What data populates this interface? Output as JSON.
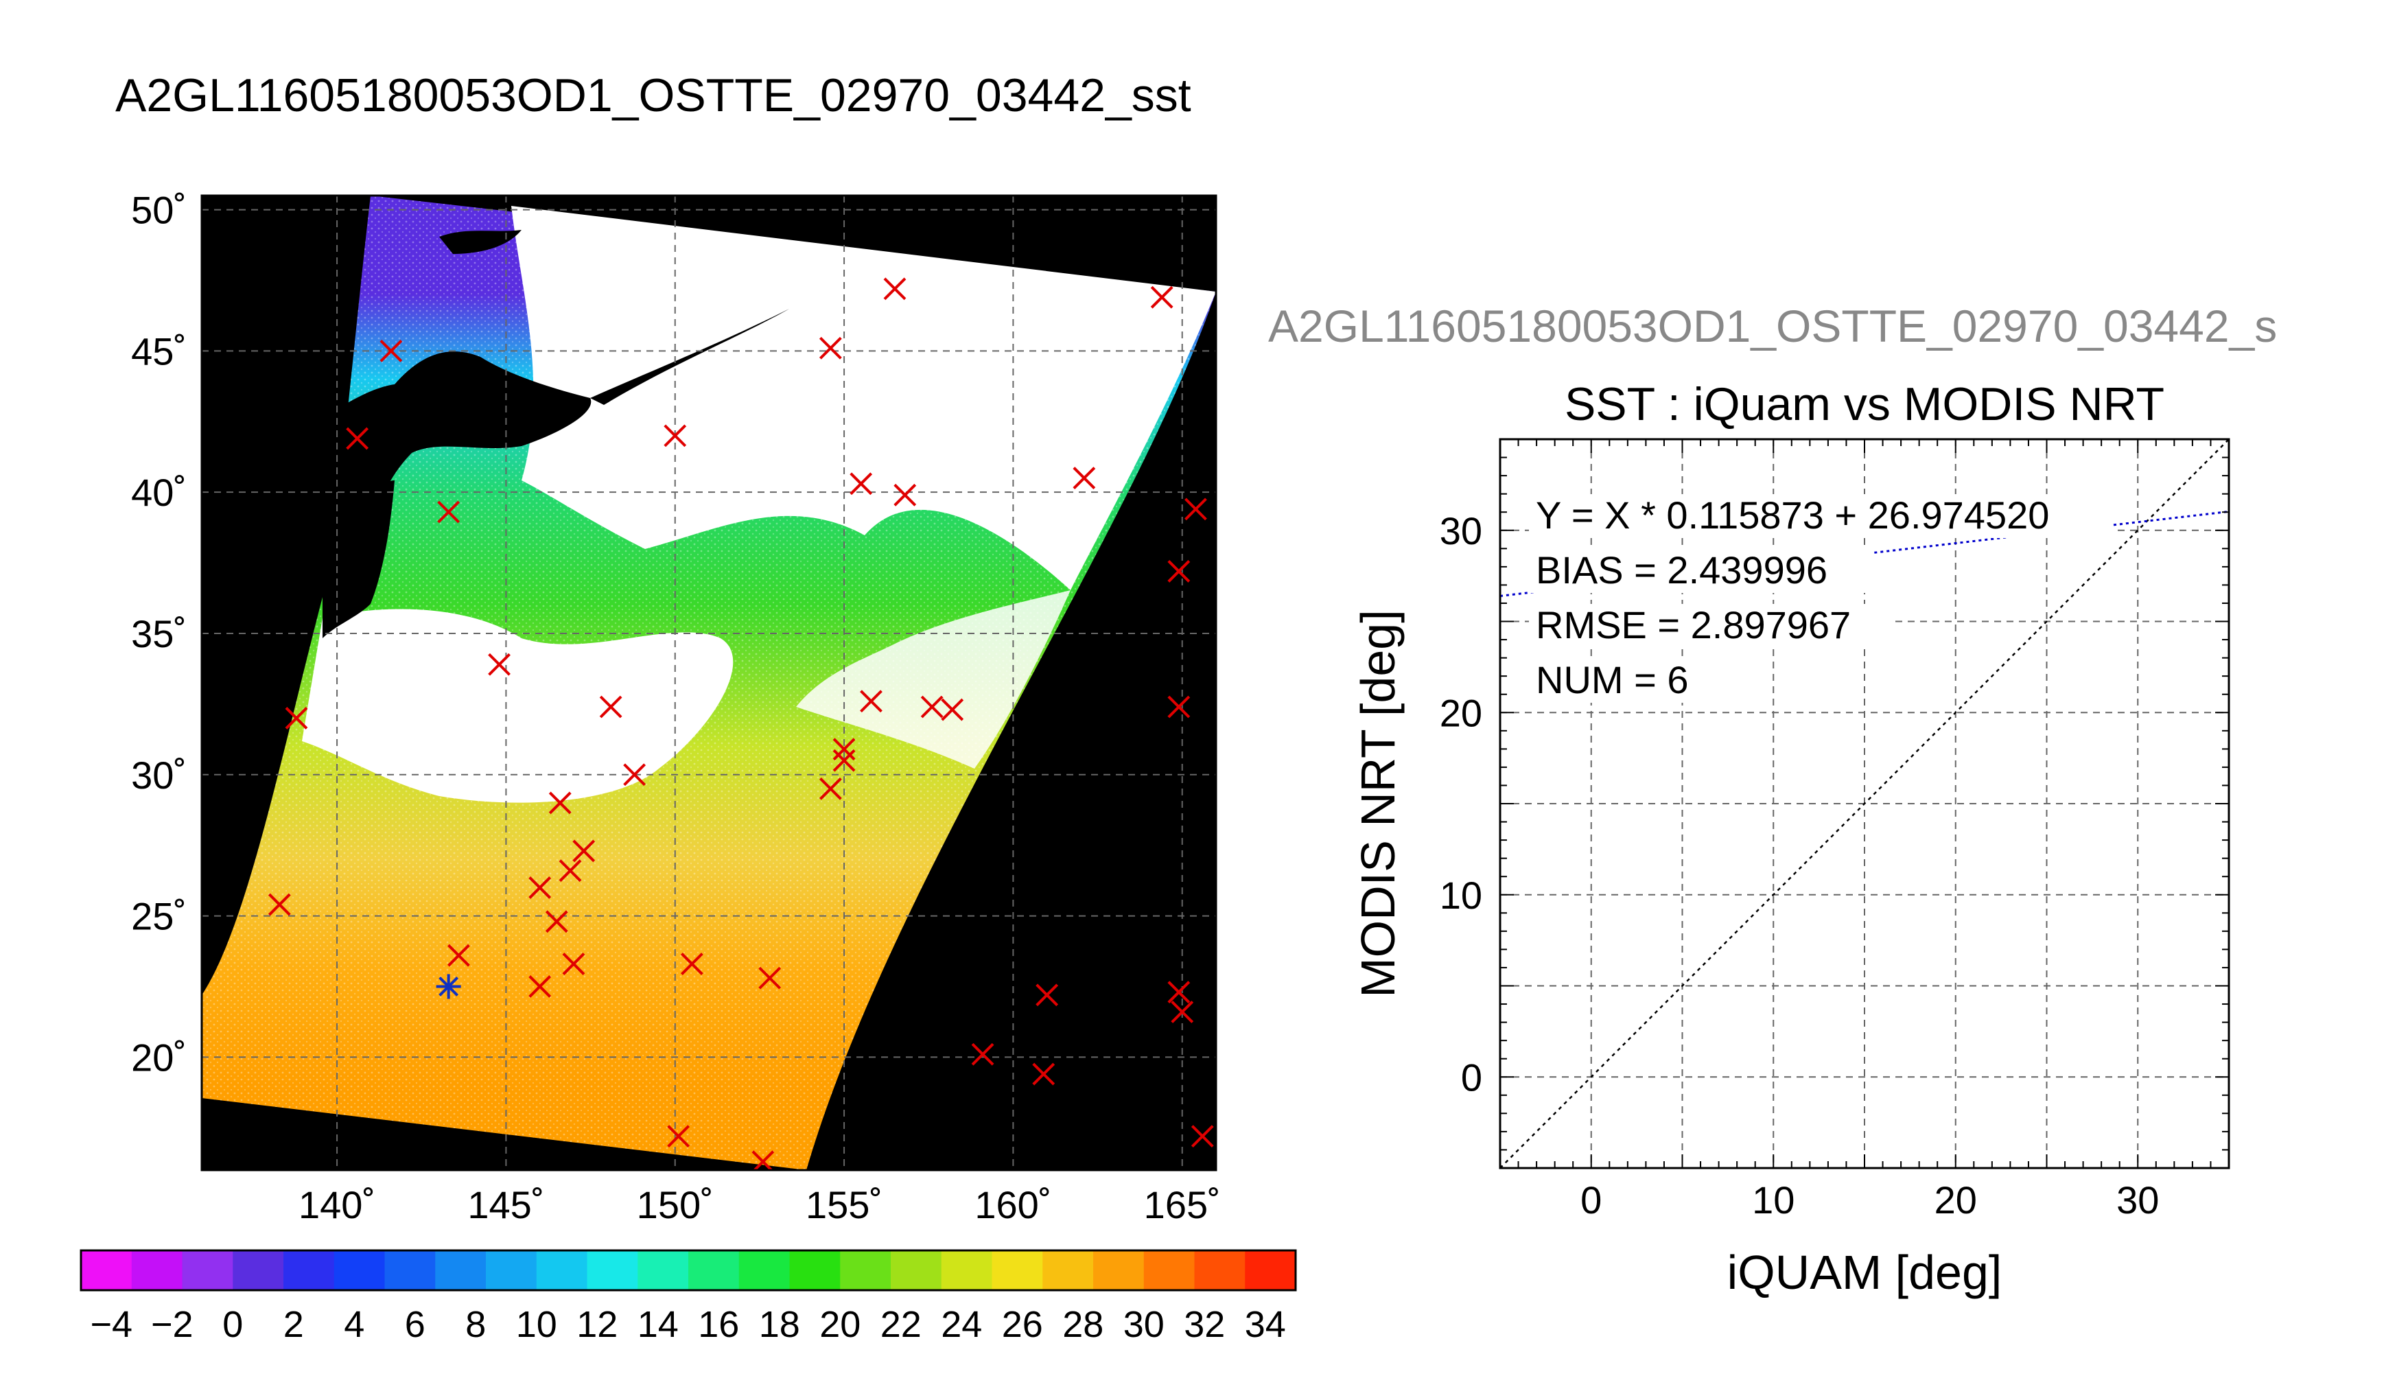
{
  "page_title": "A2GL11605180053OD1_OSTTE_02970_03442_sst",
  "colors": {
    "land": "#000000",
    "grid": "#666666",
    "marker_iquam": "#e00000",
    "marker_highlight": "#1030c0",
    "fit_line": "#0000cc",
    "identity_line": "#000000",
    "subtitle": "#888888"
  },
  "chart_data": [
    {
      "type": "map",
      "title": "",
      "x_ticks": [
        "140˚",
        "145˚",
        "150˚",
        "155˚",
        "160˚",
        "165˚"
      ],
      "x_tick_values": [
        140,
        145,
        150,
        155,
        160,
        165
      ],
      "y_ticks": [
        "50˚",
        "45˚",
        "40˚",
        "35˚",
        "30˚",
        "25˚",
        "20˚"
      ],
      "y_tick_values": [
        50,
        45,
        40,
        35,
        30,
        25,
        20
      ],
      "xlim": [
        136,
        166
      ],
      "ylim": [
        16,
        50.5
      ],
      "grid": true,
      "swath_sst_gradient": [
        {
          "lat": 47,
          "color": "#5a2ee0"
        },
        {
          "lat": 44,
          "color": "#19c8f0"
        },
        {
          "lat": 40,
          "color": "#22d870"
        },
        {
          "lat": 36,
          "color": "#3ad92a"
        },
        {
          "lat": 31,
          "color": "#c8e42a"
        },
        {
          "lat": 27,
          "color": "#f2d040"
        },
        {
          "lat": 23,
          "color": "#ffae10"
        },
        {
          "lat": 19,
          "color": "#ff9f00"
        }
      ],
      "iquam_points": [
        {
          "lon": 138.3,
          "lat": 25.4
        },
        {
          "lon": 138.8,
          "lat": 32.0
        },
        {
          "lon": 140.6,
          "lat": 41.9
        },
        {
          "lon": 141.6,
          "lat": 45.0
        },
        {
          "lon": 143.3,
          "lat": 39.3
        },
        {
          "lon": 143.6,
          "lat": 23.6
        },
        {
          "lon": 144.8,
          "lat": 33.9
        },
        {
          "lon": 146.0,
          "lat": 26.0
        },
        {
          "lon": 146.0,
          "lat": 22.5
        },
        {
          "lon": 146.5,
          "lat": 24.8
        },
        {
          "lon": 146.6,
          "lat": 29.0
        },
        {
          "lon": 146.9,
          "lat": 26.6
        },
        {
          "lon": 147.3,
          "lat": 27.3
        },
        {
          "lon": 147.0,
          "lat": 23.3
        },
        {
          "lon": 148.1,
          "lat": 32.4
        },
        {
          "lon": 148.8,
          "lat": 30.0
        },
        {
          "lon": 150.0,
          "lat": 42.0
        },
        {
          "lon": 150.5,
          "lat": 23.3
        },
        {
          "lon": 150.1,
          "lat": 17.2
        },
        {
          "lon": 152.8,
          "lat": 22.8
        },
        {
          "lon": 152.6,
          "lat": 16.3
        },
        {
          "lon": 154.6,
          "lat": 45.1
        },
        {
          "lon": 154.6,
          "lat": 29.5
        },
        {
          "lon": 155.0,
          "lat": 30.9
        },
        {
          "lon": 155.0,
          "lat": 30.5
        },
        {
          "lon": 155.5,
          "lat": 40.3
        },
        {
          "lon": 155.8,
          "lat": 32.6
        },
        {
          "lon": 156.5,
          "lat": 47.2
        },
        {
          "lon": 156.8,
          "lat": 39.9
        },
        {
          "lon": 157.6,
          "lat": 32.4
        },
        {
          "lon": 158.2,
          "lat": 32.3
        },
        {
          "lon": 159.1,
          "lat": 20.1
        },
        {
          "lon": 161.0,
          "lat": 22.2
        },
        {
          "lon": 160.9,
          "lat": 19.4
        },
        {
          "lon": 162.1,
          "lat": 40.5
        },
        {
          "lon": 164.4,
          "lat": 46.9
        },
        {
          "lon": 164.9,
          "lat": 37.2
        },
        {
          "lon": 164.9,
          "lat": 32.4
        },
        {
          "lon": 164.9,
          "lat": 22.3
        },
        {
          "lon": 165.0,
          "lat": 21.6
        },
        {
          "lon": 165.4,
          "lat": 39.4
        },
        {
          "lon": 165.6,
          "lat": 17.2
        }
      ],
      "highlight_point": {
        "lon": 143.3,
        "lat": 22.5
      }
    },
    {
      "type": "colorbar",
      "min": -5,
      "max": 35,
      "step": 2,
      "tick_labels": [
        "−4",
        "−2",
        "0",
        "2",
        "4",
        "6",
        "8",
        "10",
        "12",
        "14",
        "16",
        "18",
        "20",
        "22",
        "24",
        "26",
        "28",
        "30",
        "32",
        "34"
      ],
      "tick_values": [
        -4,
        -2,
        0,
        2,
        4,
        6,
        8,
        10,
        12,
        14,
        16,
        18,
        20,
        22,
        24,
        26,
        28,
        30,
        32,
        34
      ],
      "colors": [
        "#ee10f8",
        "#c410f8",
        "#9230f0",
        "#5a2ee0",
        "#2c2ff0",
        "#1240f8",
        "#1460f4",
        "#1488f2",
        "#14a8f2",
        "#14c8f0",
        "#18e8e8",
        "#18f0b4",
        "#18ec78",
        "#18e840",
        "#28e010",
        "#6ae018",
        "#a0e018",
        "#d0e418",
        "#f2e018",
        "#f8c010",
        "#fca008",
        "#ff7804",
        "#ff5004",
        "#ff2404"
      ]
    },
    {
      "type": "scatter",
      "subtitle": "A2GL11605180053OD1_OSTTE_02970_03442_s",
      "title": "SST : iQuam vs MODIS NRT",
      "xlabel": "iQUAM [deg]",
      "ylabel": "MODIS NRT [deg]",
      "xlim": [
        -5,
        35
      ],
      "ylim": [
        -5,
        35
      ],
      "grid": true,
      "x_ticks": [
        "0",
        "10",
        "20",
        "30"
      ],
      "x_tick_values": [
        0,
        10,
        20,
        30
      ],
      "y_ticks": [
        "0",
        "10",
        "20",
        "30"
      ],
      "y_tick_values": [
        0,
        10,
        20,
        30
      ],
      "fit": {
        "slope": 0.115873,
        "intercept": 26.97452
      },
      "stats": {
        "equation": "Y = X * 0.115873 + 26.974520",
        "bias": "BIAS = 2.439996",
        "rmse": "RMSE = 2.897967",
        "num": "NUM = 6"
      }
    }
  ]
}
